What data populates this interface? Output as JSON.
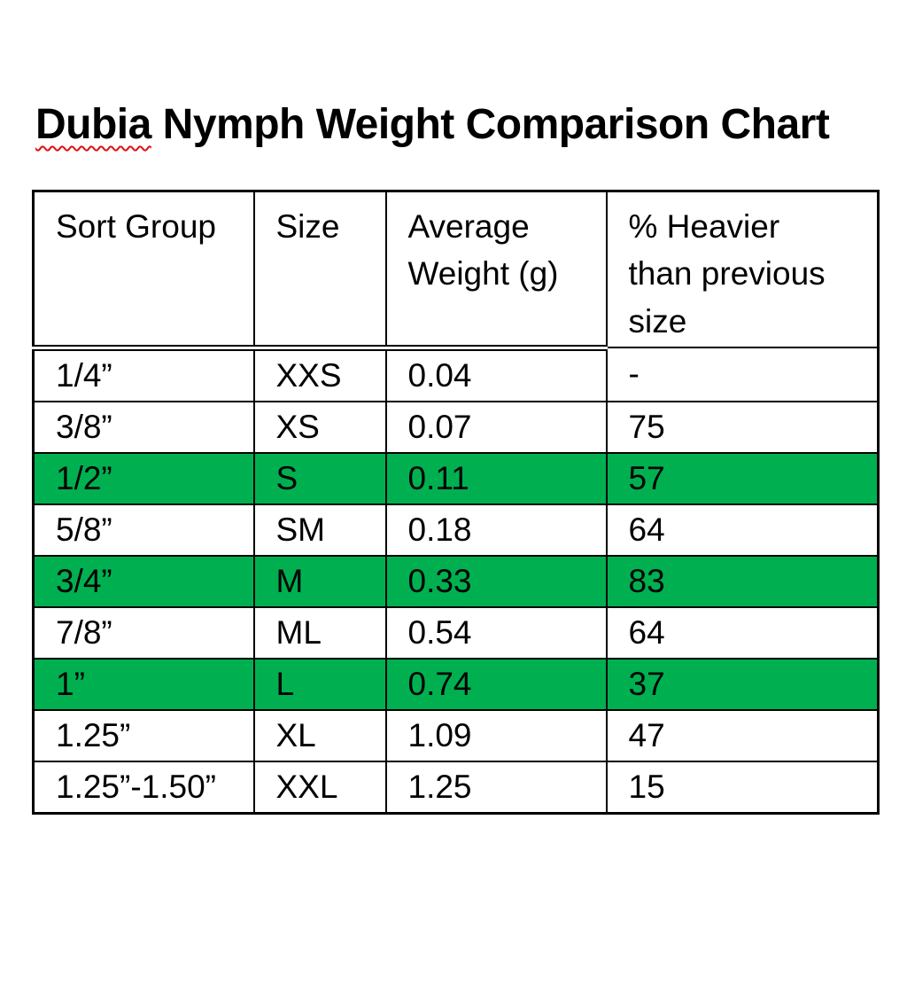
{
  "page": {
    "background": "#ffffff"
  },
  "colors": {
    "highlight_green": "#00B050",
    "border_black": "#000000",
    "spellcheck_red": "#e01010",
    "text_black": "#000000"
  },
  "title": {
    "full_text": "Dubia Nymph Weight Comparison Chart",
    "underlined_word": "Dubia",
    "rest": " Nymph Weight Comparison Chart"
  },
  "table": {
    "columns": [
      "Sort Group",
      "Size",
      "Average Weight (g)",
      "% Heavier than previous size"
    ],
    "rows": [
      {
        "sort_group": "1/4”",
        "size": "XXS",
        "average_weight_g": "0.04",
        "pct_heavier_than_previous": "-",
        "highlighted": false
      },
      {
        "sort_group": "3/8”",
        "size": "XS",
        "average_weight_g": "0.07",
        "pct_heavier_than_previous": "75",
        "highlighted": false
      },
      {
        "sort_group": "1/2”",
        "size": "S",
        "average_weight_g": "0.11",
        "pct_heavier_than_previous": "57",
        "highlighted": true
      },
      {
        "sort_group": "5/8”",
        "size": "SM",
        "average_weight_g": "0.18",
        "pct_heavier_than_previous": "64",
        "highlighted": false
      },
      {
        "sort_group": "3/4”",
        "size": "M",
        "average_weight_g": "0.33",
        "pct_heavier_than_previous": "83",
        "highlighted": true
      },
      {
        "sort_group": "7/8”",
        "size": "ML",
        "average_weight_g": "0.54",
        "pct_heavier_than_previous": "64",
        "highlighted": false
      },
      {
        "sort_group": "1”",
        "size": "L",
        "average_weight_g": "0.74",
        "pct_heavier_than_previous": "37",
        "highlighted": true
      },
      {
        "sort_group": "1.25”",
        "size": "XL",
        "average_weight_g": "1.09",
        "pct_heavier_than_previous": "47",
        "highlighted": false
      },
      {
        "sort_group": "1.25”-1.50”",
        "size": "XXL",
        "average_weight_g": "1.25",
        "pct_heavier_than_previous": "15",
        "highlighted": false
      }
    ]
  },
  "chart_data": {
    "type": "table",
    "title": "Dubia Nymph Weight Comparison Chart",
    "columns": [
      "Sort Group",
      "Size",
      "Average Weight (g)",
      "% Heavier than previous size"
    ],
    "rows": [
      [
        "1/4”",
        "XXS",
        "0.04",
        "-"
      ],
      [
        "3/8”",
        "XS",
        "0.07",
        "75"
      ],
      [
        "1/2”",
        "S",
        "0.11",
        "57"
      ],
      [
        "5/8”",
        "SM",
        "0.18",
        "64"
      ],
      [
        "3/4”",
        "M",
        "0.33",
        "83"
      ],
      [
        "7/8”",
        "ML",
        "0.54",
        "64"
      ],
      [
        "1”",
        "L",
        "0.74",
        "37"
      ],
      [
        "1.25”",
        "XL",
        "1.09",
        "47"
      ],
      [
        "1.25”-1.50”",
        "XXL",
        "1.25",
        "15"
      ]
    ],
    "highlighted_rows": [
      2,
      4,
      6
    ]
  }
}
